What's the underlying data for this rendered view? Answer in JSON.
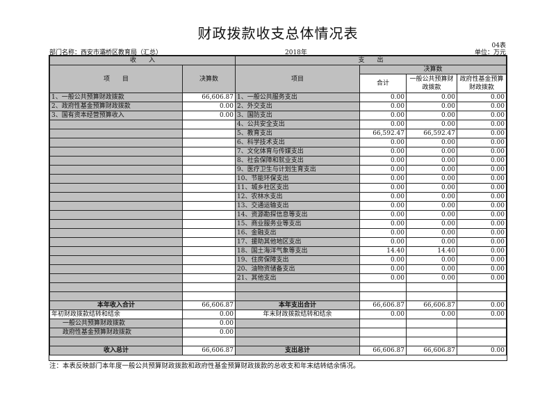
{
  "title": "财政拨款收支总体情况表",
  "form_no": "04表",
  "department": "部门名称：西安市灞桥区教育局（汇总）",
  "year": "2018年",
  "unit": "单位：万元",
  "headers": {
    "income": "收　　入",
    "expense": "支　　出",
    "item": "项　　目",
    "final_amount": "决算数",
    "item2": "项目",
    "final_amount2": "决算数",
    "total": "合计",
    "general": "一般公共预算财政拨款",
    "fund": "政府性基金预算财政拨款"
  },
  "income_rows": [
    {
      "label": "1、一般公共预算财政拨款",
      "value": "66,606.87"
    },
    {
      "label": "2、政府性基金预算财政拨款",
      "value": "0.00"
    },
    {
      "label": "3、国有资本经营预算收入",
      "value": "0.00"
    }
  ],
  "expense_rows": [
    {
      "label": "1、一般公共服务支出",
      "total": "0.00",
      "general": "0.00",
      "fund": "0.00"
    },
    {
      "label": "2、外交支出",
      "total": "0.00",
      "general": "0.00",
      "fund": "0.00"
    },
    {
      "label": "3、国防支出",
      "total": "0.00",
      "general": "0.00",
      "fund": "0.00"
    },
    {
      "label": "4、公共安全支出",
      "total": "0.00",
      "general": "0.00",
      "fund": "0.00"
    },
    {
      "label": "5、教育支出",
      "total": "66,592.47",
      "general": "66,592.47",
      "fund": "0.00"
    },
    {
      "label": "6、科学技术支出",
      "total": "0.00",
      "general": "0.00",
      "fund": "0.00"
    },
    {
      "label": "7、文化体育与传媒支出",
      "total": "0.00",
      "general": "0.00",
      "fund": "0.00"
    },
    {
      "label": "8、社会保障和就业支出",
      "total": "0.00",
      "general": "0.00",
      "fund": "0.00"
    },
    {
      "label": "9、医疗卫生与计划生育支出",
      "total": "0.00",
      "general": "0.00",
      "fund": "0.00"
    },
    {
      "label": "10、节能环保支出",
      "total": "0.00",
      "general": "0.00",
      "fund": "0.00"
    },
    {
      "label": "11、城乡社区支出",
      "total": "0.00",
      "general": "0.00",
      "fund": "0.00"
    },
    {
      "label": "12、农林水支出",
      "total": "0.00",
      "general": "0.00",
      "fund": "0.00"
    },
    {
      "label": "13、交通运输支出",
      "total": "0.00",
      "general": "0.00",
      "fund": "0.00"
    },
    {
      "label": "14、资源勘探信息等支出",
      "total": "0.00",
      "general": "0.00",
      "fund": "0.00"
    },
    {
      "label": "15、商业服务业等支出",
      "total": "0.00",
      "general": "0.00",
      "fund": "0.00"
    },
    {
      "label": "16、金融支出",
      "total": "0.00",
      "general": "0.00",
      "fund": "0.00"
    },
    {
      "label": "17、援助其他地区支出",
      "total": "0.00",
      "general": "0.00",
      "fund": "0.00"
    },
    {
      "label": "18、国土海洋气象等支出",
      "total": "14.40",
      "general": "14.40",
      "fund": "0.00"
    },
    {
      "label": "19、住房保障支出",
      "total": "0.00",
      "general": "0.00",
      "fund": "0.00"
    },
    {
      "label": "20、油物资储备支出",
      "total": "0.00",
      "general": "0.00",
      "fund": "0.00"
    },
    {
      "label": "21、其他支出",
      "total": "0.00",
      "general": "0.00",
      "fund": "0.00"
    }
  ],
  "summary": {
    "income_year_total_label": "本年收入合计",
    "income_year_total": "66,606.87",
    "expense_year_total_label": "本年支出合计",
    "expense_year_total": "66,606.87",
    "expense_year_general": "66,606.87",
    "expense_year_fund": "0.00",
    "begin_balance_label": "年初财政拨款结转和结余",
    "begin_balance": "0.00",
    "end_balance_label": "年末财政拨款结转和结余",
    "end_balance_total": "0.00",
    "end_balance_general": "0.00",
    "end_balance_fund": "0.00",
    "begin_general_label": "一般公共预算财政拨款",
    "begin_general": "0.00",
    "begin_fund_label": "政府性基金预算财政拨款",
    "begin_fund": "0.00",
    "income_grand_label": "收入总计",
    "income_grand": "66,606.87",
    "expense_grand_label": "支出总计",
    "expense_grand_total": "66,606.87",
    "expense_grand_general": "66,606.87",
    "expense_grand_fund": "0.00"
  },
  "note": "注：本表反映部门本年度一般公共预算财政拨款和政府性基金预算财政拨款的总收支和年末结转结余情况。"
}
